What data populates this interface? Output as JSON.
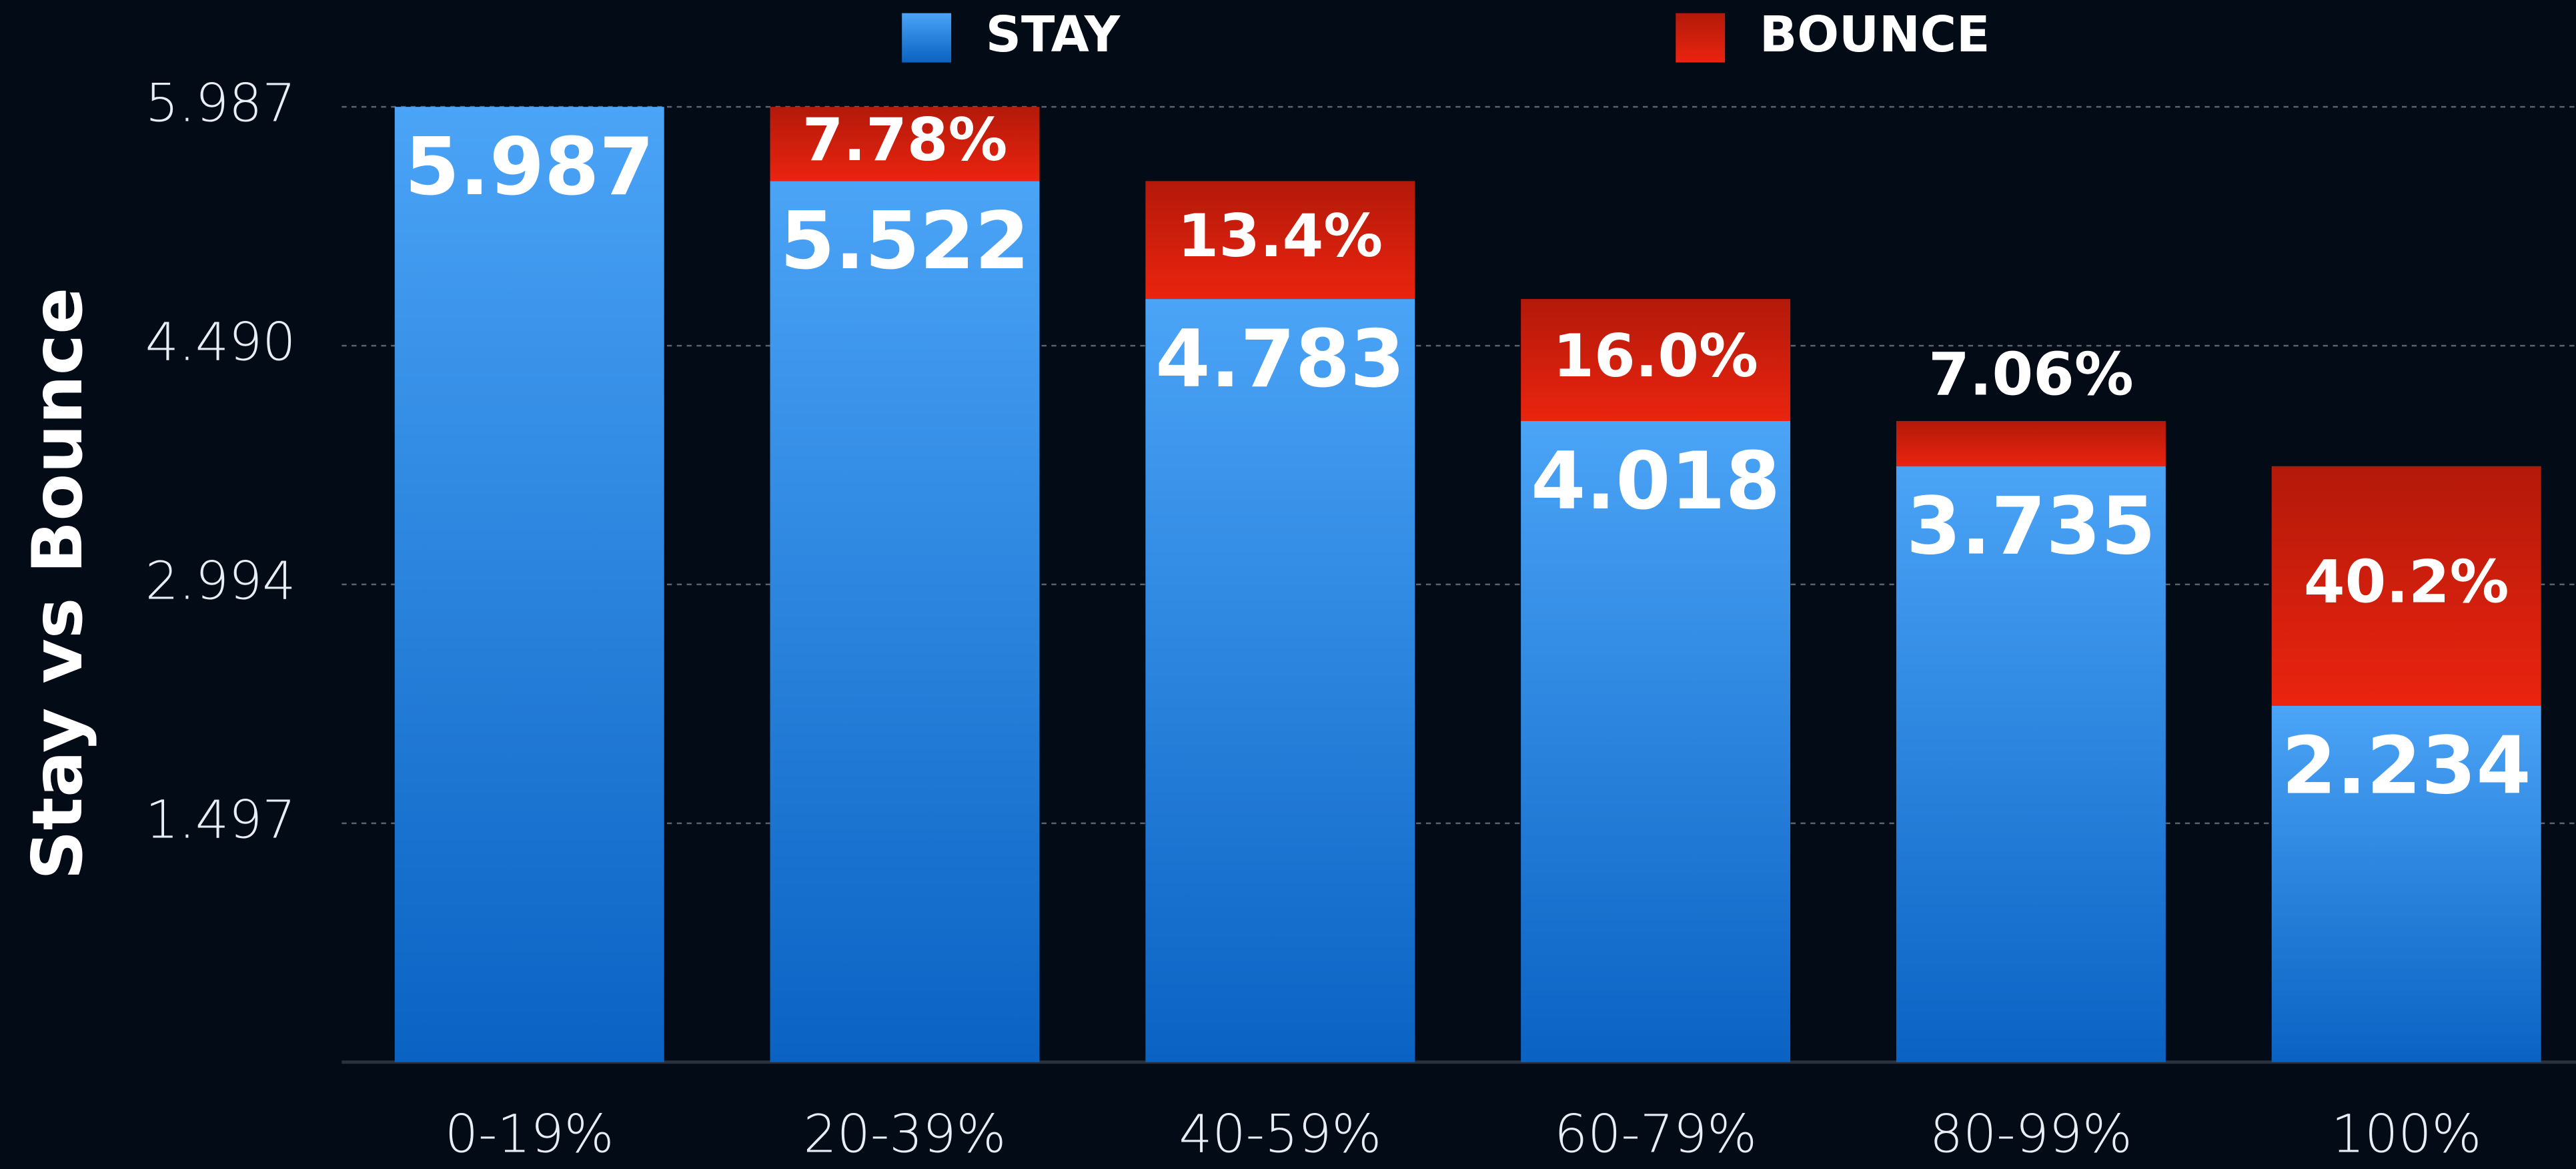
{
  "chart_data": {
    "type": "stacked_bar",
    "y_label": "Stay vs Bounce",
    "categories": [
      "0-19%",
      "20-39%",
      "40-59%",
      "60-79%",
      "80-99%",
      "100%"
    ],
    "series": [
      {
        "name": "STAY",
        "color": "#2f86e6",
        "values": [
          5.987,
          5.522,
          4.783,
          4.018,
          3.735,
          2.234
        ]
      },
      {
        "name": "BOUNCE",
        "color": "#d8200c",
        "values": [
          null,
          0.465,
          0.739,
          0.765,
          0.283,
          1.501
        ],
        "rate_labels": [
          null,
          "7.78%",
          "13.4%",
          "16.0%",
          "7.06%",
          "40.2%"
        ]
      }
    ],
    "ylim": [
      0,
      5.987
    ],
    "yticks": [
      1.497,
      2.994,
      {
        "value": 4.49,
        "label": "4.490"
      },
      5.987
    ],
    "grid": true,
    "legend": "top"
  }
}
